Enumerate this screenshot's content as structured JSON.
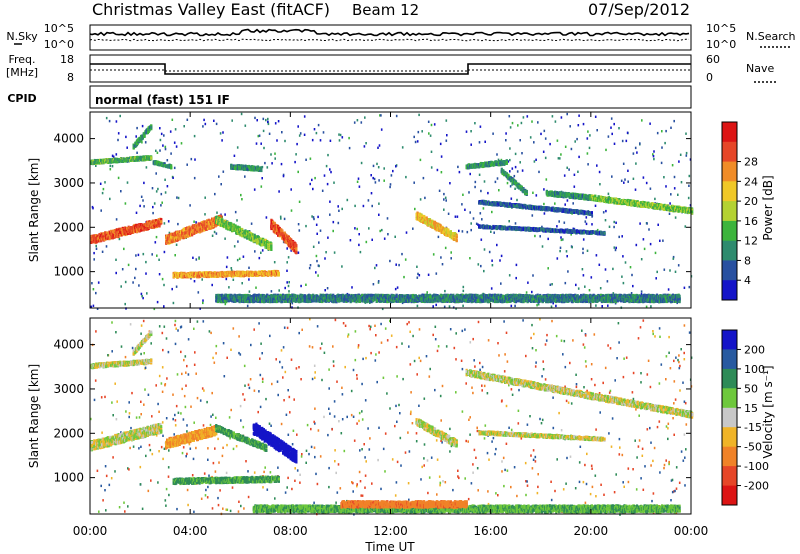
{
  "header": {
    "title": "Christmas Valley East (fitACF)",
    "beam": "Beam 12",
    "date": "07/Sep/2012"
  },
  "noise_panel": {
    "left_label": "N.Sky",
    "left_ticks": [
      "10^5",
      "10^0"
    ],
    "right_ticks": [
      "10^5",
      "10^0"
    ],
    "right_label": "N.Search"
  },
  "freq_panel": {
    "left_label_1": "Freq.",
    "left_label_2": "[MHz]",
    "left_ticks": [
      "18",
      "8"
    ],
    "right_ticks": [
      "60",
      "0"
    ],
    "right_label": "Nave"
  },
  "cpid": {
    "label": "CPID",
    "mode": "normal (fast) 151 IF"
  },
  "colors": {
    "power": [
      "#1414c8",
      "#2850a0",
      "#2e8b6e",
      "#3cb43c",
      "#b4d232",
      "#f0c828",
      "#f08c28",
      "#e64628",
      "#dc1414"
    ],
    "velocity": [
      "#1414c8",
      "#285aa0",
      "#2e8b57",
      "#6ec83c",
      "#c8c8c8",
      "#f0b428",
      "#f08228",
      "#e64628",
      "#dc1414"
    ]
  },
  "chart_data": [
    {
      "type": "heatmap",
      "name": "power",
      "ylabel": "Slant Range [km]",
      "yticks": [
        "1000",
        "2000",
        "3000",
        "4000"
      ],
      "ylim": [
        180,
        4600
      ],
      "xlim_hours": [
        0,
        24
      ],
      "colorbar": {
        "label": "Power [dB]",
        "ticks": [
          "4",
          "8",
          "12",
          "16",
          "20",
          "24",
          "28"
        ],
        "range": [
          0,
          32
        ]
      },
      "regions": [
        {
          "t": [
            0,
            2.8
          ],
          "r_start": 1750,
          "r_end": 2150,
          "power": 26,
          "width": 160
        },
        {
          "t": [
            0,
            2.4
          ],
          "r_start": 3500,
          "r_end": 3600,
          "power": 12,
          "width": 70
        },
        {
          "t": [
            1.7,
            2.4
          ],
          "r_start": 3850,
          "r_end": 4300,
          "power": 10,
          "width": 90
        },
        {
          "t": [
            2.5,
            3.2
          ],
          "r_start": 3500,
          "r_end": 3400,
          "power": 10,
          "width": 60
        },
        {
          "t": [
            3.0,
            5.2
          ],
          "r_start": 1750,
          "r_end": 2200,
          "power": 24,
          "width": 200
        },
        {
          "t": [
            3.3,
            7.5
          ],
          "r_start": 950,
          "r_end": 1000,
          "power": 22,
          "width": 90
        },
        {
          "t": [
            5.0,
            7.2
          ],
          "r_start": 2200,
          "r_end": 1600,
          "power": 14,
          "width": 160
        },
        {
          "t": [
            7.2,
            8.2
          ],
          "r_start": 2100,
          "r_end": 1550,
          "power": 26,
          "width": 200
        },
        {
          "t": [
            5.6,
            6.8
          ],
          "r_start": 3400,
          "r_end": 3350,
          "power": 10,
          "width": 80
        },
        {
          "t": [
            13.0,
            14.6
          ],
          "r_start": 2300,
          "r_end": 1800,
          "power": 20,
          "width": 150
        },
        {
          "t": [
            15.0,
            16.6
          ],
          "r_start": 3400,
          "r_end": 3500,
          "power": 10,
          "width": 80
        },
        {
          "t": [
            16.4,
            17.4
          ],
          "r_start": 3300,
          "r_end": 2800,
          "power": 10,
          "width": 90
        },
        {
          "t": [
            18.2,
            20.0
          ],
          "r_start": 2800,
          "r_end": 2700,
          "power": 10,
          "width": 90
        },
        {
          "t": [
            20.0,
            24.0
          ],
          "r_start": 2700,
          "r_end": 2400,
          "power": 14,
          "width": 100
        },
        {
          "t": [
            15.5,
            20.0
          ],
          "r_start": 2600,
          "r_end": 2350,
          "power": 6,
          "width": 60
        },
        {
          "t": [
            15.5,
            20.5
          ],
          "r_start": 2050,
          "r_end": 1900,
          "power": 6,
          "width": 50
        },
        {
          "t": [
            5.0,
            23.5
          ],
          "r_start": 430,
          "r_end": 430,
          "power": 8,
          "width": 150
        }
      ]
    },
    {
      "type": "heatmap",
      "name": "velocity",
      "xlabel": "Time UT",
      "xticks": [
        "00:00",
        "04:00",
        "08:00",
        "12:00",
        "16:00",
        "20:00",
        "00:00"
      ],
      "ylabel": "Slant Range [km]",
      "yticks": [
        "1000",
        "2000",
        "3000",
        "4000"
      ],
      "ylim": [
        180,
        4600
      ],
      "xlim_hours": [
        0,
        24
      ],
      "colorbar": {
        "label": "Velocity [m s⁻¹]",
        "ticks": [
          "200",
          "100",
          "50",
          "15",
          "-15",
          "-50",
          "-100",
          "-200"
        ],
        "range": [
          -250,
          250
        ]
      },
      "regions": [
        {
          "t": [
            0,
            2.8
          ],
          "r_start": 1750,
          "r_end": 2150,
          "vel": 0,
          "width": 200
        },
        {
          "t": [
            0,
            2.4
          ],
          "r_start": 3550,
          "r_end": 3650,
          "vel": 0,
          "width": 80
        },
        {
          "t": [
            1.7,
            2.4
          ],
          "r_start": 3850,
          "r_end": 4300,
          "vel": 0,
          "width": 90
        },
        {
          "t": [
            3.0,
            5.0
          ],
          "r_start": 1800,
          "r_end": 2100,
          "vel": -30,
          "width": 200
        },
        {
          "t": [
            3.3,
            7.5
          ],
          "r_start": 950,
          "r_end": 1000,
          "vel": 40,
          "width": 110
        },
        {
          "t": [
            5.0,
            7.0
          ],
          "r_start": 2150,
          "r_end": 1700,
          "vel": 40,
          "width": 120
        },
        {
          "t": [
            6.5,
            8.2
          ],
          "r_start": 2150,
          "r_end": 1500,
          "vel": 190,
          "width": 260
        },
        {
          "t": [
            13.0,
            14.6
          ],
          "r_start": 2300,
          "r_end": 1800,
          "vel": 0,
          "width": 150
        },
        {
          "t": [
            15.0,
            24.0
          ],
          "r_start": 3400,
          "r_end": 2450,
          "vel": 0,
          "width": 120
        },
        {
          "t": [
            15.5,
            20.5
          ],
          "r_start": 2050,
          "r_end": 1900,
          "vel": 0,
          "width": 60
        },
        {
          "t": [
            6.5,
            23.5
          ],
          "r_start": 330,
          "r_end": 330,
          "vel": 30,
          "width": 140
        },
        {
          "t": [
            10.0,
            15.0
          ],
          "r_start": 430,
          "r_end": 430,
          "vel": -60,
          "width": 130
        }
      ]
    }
  ]
}
